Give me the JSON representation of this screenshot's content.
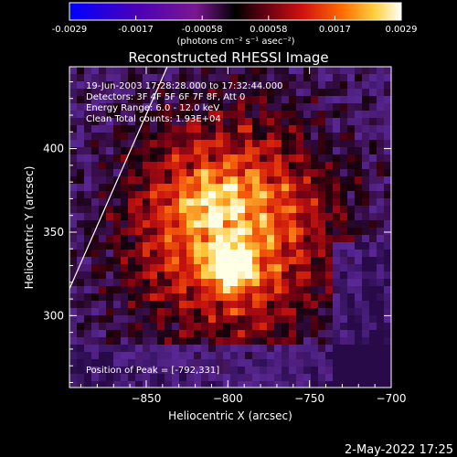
{
  "colorbar": {
    "ticks": [
      "-0.0029",
      "-0.0017",
      "-0.00058",
      "0.00058",
      "0.0017",
      "0.0029"
    ],
    "unit_label": "(photons cm⁻² s⁻¹ asec⁻²)"
  },
  "plot": {
    "title": "Reconstructed RHESSI Image",
    "xlabel": "Heliocentric X (arcsec)",
    "ylabel": "Heliocentric Y (arcsec)",
    "xticks": [
      "-850",
      "-800",
      "-750",
      "-700"
    ],
    "yticks": [
      "400",
      "350",
      "300"
    ],
    "xlim": [
      -897,
      -700
    ],
    "ylim": [
      257,
      449
    ],
    "annotations": {
      "time_range": "19-Jun-2003 17:28:28.000 to 17:32:44.000",
      "detectors": "Detectors: 3F 4F 5F 6F 7F 8F, Att 0",
      "energy": "Energy Range: 6.0 - 12.0 keV",
      "method": "Clean     Total counts: 1.93E+04",
      "peak": "Position of Peak = [-792,331]"
    }
  },
  "footer": {
    "date": "2-May-2022 17:25"
  },
  "colors": {
    "limb": "#ffffff",
    "background": "#000000"
  }
}
